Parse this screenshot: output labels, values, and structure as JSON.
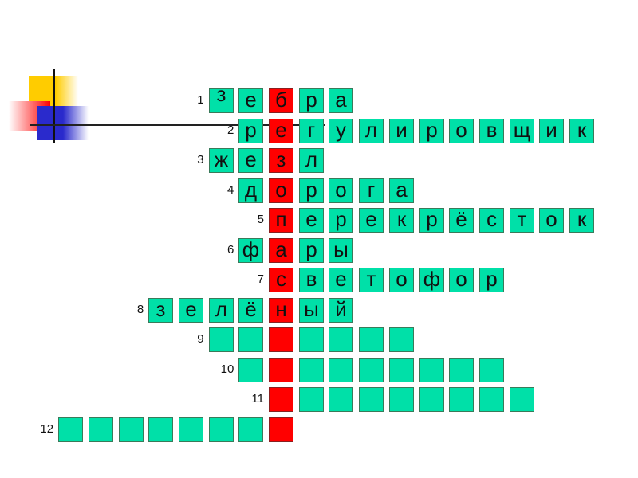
{
  "colors": {
    "cell": "#00e0a8",
    "key_column": "#ff0000"
  },
  "rows": [
    {
      "number": "1",
      "start": -2,
      "letters": [
        "з",
        "е",
        "б",
        "р",
        "а"
      ]
    },
    {
      "number": "2",
      "start": -1,
      "letters": [
        "р",
        "е",
        "г",
        "у",
        "л",
        "и",
        "р",
        "о",
        "в",
        "щ",
        "и",
        "к"
      ]
    },
    {
      "number": "3",
      "start": -2,
      "letters": [
        "ж",
        "е",
        "з",
        "л"
      ]
    },
    {
      "number": "4",
      "start": -1,
      "letters": [
        "д",
        "о",
        "р",
        "о",
        "г",
        "а"
      ]
    },
    {
      "number": "5",
      "start": 0,
      "letters": [
        "п",
        "е",
        "р",
        "е",
        "к",
        "р",
        "ё",
        "с",
        "т",
        "о",
        "к"
      ]
    },
    {
      "number": "6",
      "start": -1,
      "letters": [
        "ф",
        "а",
        "р",
        "ы"
      ]
    },
    {
      "number": "7",
      "start": 0,
      "letters": [
        "с",
        "в",
        "е",
        "т",
        "о",
        "ф",
        "о",
        "р"
      ]
    },
    {
      "number": "8",
      "start": -4,
      "letters": [
        "з",
        "е",
        "л",
        "ё",
        "н",
        "ы",
        "й"
      ]
    },
    {
      "number": "9",
      "start": -2,
      "letters": [
        "",
        "",
        "",
        "",
        "",
        "",
        ""
      ]
    },
    {
      "number": "10",
      "start": -1,
      "letters": [
        "",
        "",
        "",
        "",
        "",
        "",
        "",
        "",
        ""
      ]
    },
    {
      "number": "11",
      "start": 0,
      "letters": [
        "",
        "",
        "",
        "",
        "",
        "",
        "",
        "",
        ""
      ]
    },
    {
      "number": "12",
      "start": -7,
      "letters": [
        "",
        "",
        "",
        "",
        "",
        "",
        "",
        ""
      ]
    }
  ]
}
